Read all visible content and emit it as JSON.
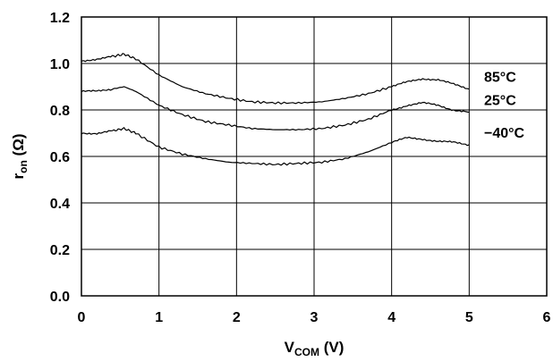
{
  "chart_data": {
    "type": "line",
    "xlabel_main": "V",
    "xlabel_sub": "COM",
    "xlabel_unit": " (V)",
    "ylabel_main": "r",
    "ylabel_sub": "on",
    "ylabel_unit": " (Ω)",
    "xlim": [
      0,
      6
    ],
    "ylim": [
      0,
      1.2
    ],
    "xticks": [
      "0",
      "1",
      "2",
      "3",
      "4",
      "5",
      "6"
    ],
    "yticks": [
      "0.0",
      "0.2",
      "0.4",
      "0.6",
      "0.8",
      "1.0",
      "1.2"
    ],
    "grid": true,
    "series": [
      {
        "name": "85°C",
        "x": [
          0,
          0.2,
          0.4,
          0.55,
          0.7,
          1.0,
          1.3,
          1.6,
          1.9,
          2.2,
          2.5,
          2.8,
          3.1,
          3.4,
          3.7,
          4.0,
          4.2,
          4.4,
          4.6,
          4.8,
          5.0
        ],
        "y": [
          1.01,
          1.02,
          1.03,
          1.04,
          1.02,
          0.95,
          0.9,
          0.87,
          0.85,
          0.835,
          0.83,
          0.83,
          0.835,
          0.85,
          0.87,
          0.9,
          0.92,
          0.935,
          0.93,
          0.91,
          0.89
        ]
      },
      {
        "name": "25°C",
        "x": [
          0,
          0.2,
          0.4,
          0.55,
          0.7,
          1.0,
          1.3,
          1.6,
          1.9,
          2.2,
          2.5,
          2.8,
          3.1,
          3.4,
          3.7,
          4.0,
          4.2,
          4.4,
          4.6,
          4.8,
          5.0
        ],
        "y": [
          0.88,
          0.88,
          0.89,
          0.9,
          0.88,
          0.82,
          0.78,
          0.75,
          0.735,
          0.72,
          0.715,
          0.715,
          0.72,
          0.735,
          0.76,
          0.8,
          0.82,
          0.83,
          0.82,
          0.8,
          0.79
        ]
      },
      {
        "name": "−40°C",
        "x": [
          0,
          0.2,
          0.4,
          0.55,
          0.7,
          1.0,
          1.3,
          1.6,
          1.9,
          2.2,
          2.5,
          2.8,
          3.1,
          3.4,
          3.7,
          4.0,
          4.2,
          4.4,
          4.6,
          4.8,
          5.0
        ],
        "y": [
          0.7,
          0.7,
          0.71,
          0.72,
          0.7,
          0.64,
          0.61,
          0.59,
          0.575,
          0.57,
          0.565,
          0.57,
          0.575,
          0.59,
          0.62,
          0.66,
          0.68,
          0.675,
          0.665,
          0.66,
          0.65
        ]
      }
    ]
  }
}
